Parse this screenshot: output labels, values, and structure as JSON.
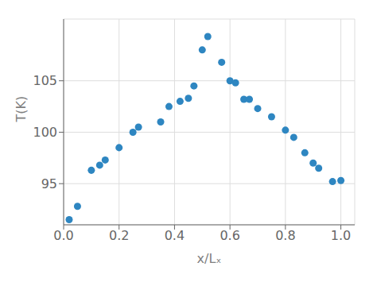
{
  "chart_data": {
    "type": "scatter",
    "x": [
      0.02,
      0.05,
      0.1,
      0.13,
      0.15,
      0.2,
      0.25,
      0.27,
      0.35,
      0.38,
      0.42,
      0.45,
      0.47,
      0.5,
      0.52,
      0.57,
      0.6,
      0.62,
      0.65,
      0.67,
      0.7,
      0.75,
      0.8,
      0.83,
      0.87,
      0.9,
      0.92,
      0.97,
      1.0
    ],
    "values": [
      91.5,
      92.8,
      96.3,
      96.8,
      97.3,
      98.5,
      100.0,
      100.5,
      101.0,
      102.5,
      103.0,
      103.3,
      104.5,
      108.0,
      109.3,
      106.8,
      105.0,
      104.8,
      103.2,
      103.2,
      102.3,
      101.5,
      100.2,
      99.5,
      98.0,
      97.0,
      96.5,
      95.2,
      95.3
    ],
    "color": "#2E86C1",
    "xlabel": "x/Lₓ",
    "ylabel": "T(K)",
    "xlim": [
      0.0,
      1.05
    ],
    "ylim": [
      91.0,
      111.0
    ],
    "xticks": [
      {
        "value": 0.0,
        "label": "0.0"
      },
      0.2,
      0.4,
      0.6,
      0.8,
      {
        "value": 1.0,
        "label": "1.0"
      }
    ],
    "yticks": [
      95,
      100,
      105
    ],
    "grid": true
  }
}
